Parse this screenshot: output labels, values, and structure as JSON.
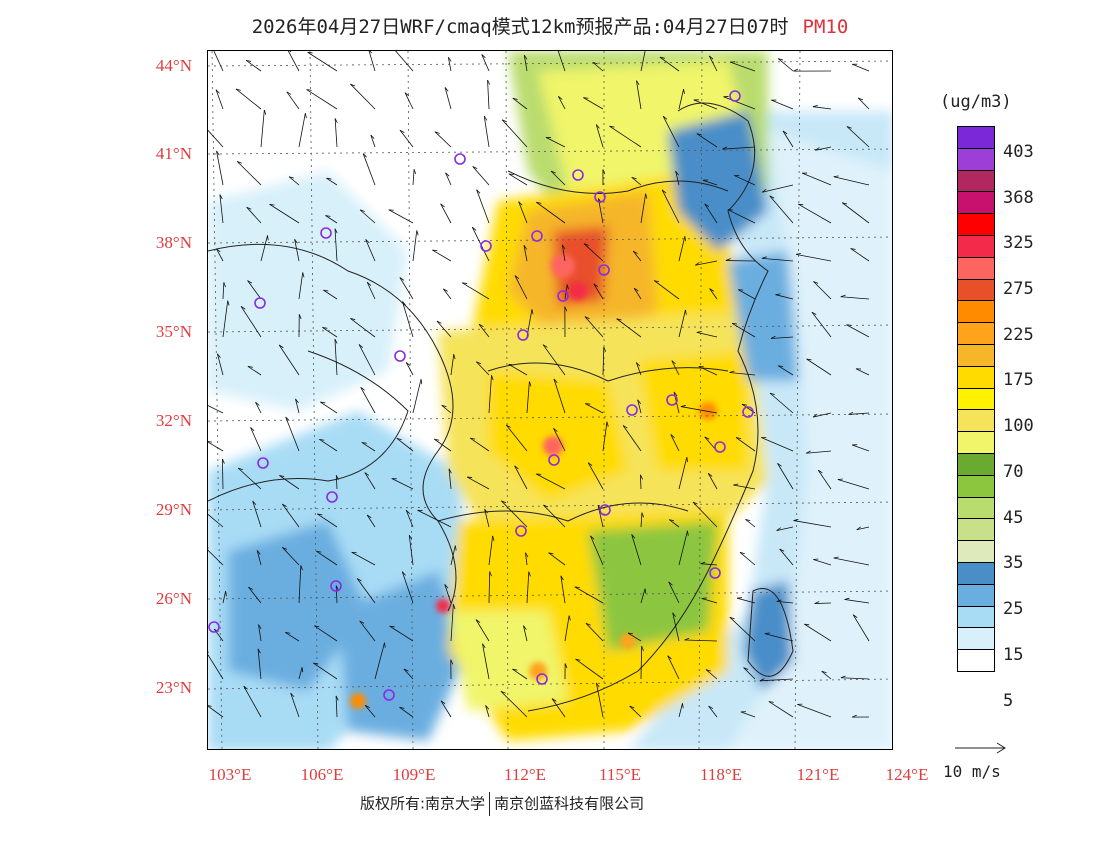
{
  "title": {
    "text": "2026年04月27日WRF/cmaq模式12km预报产品:04月27日07时",
    "pollutant": "PM10"
  },
  "axes": {
    "latitude_labels": [
      "44°N",
      "41°N",
      "38°N",
      "35°N",
      "32°N",
      "29°N",
      "26°N",
      "23°N"
    ],
    "longitude_labels": [
      "103°E",
      "106°E",
      "109°E",
      "112°E",
      "115°E",
      "118°E",
      "121°E",
      "124°E"
    ]
  },
  "legend": {
    "unit": "(ug/m3)",
    "labels": [
      "403",
      "368",
      "325",
      "275",
      "225",
      "175",
      "100",
      "70",
      "45",
      "35",
      "25",
      "15",
      "5"
    ],
    "colors": [
      "#7a28d8",
      "#9b3fd6",
      "#b0285f",
      "#c8106e",
      "#ff0000",
      "#f42a4a",
      "#ff6560",
      "#e8502a",
      "#ff8c00",
      "#ffa31a",
      "#f5b62a",
      "#ffdb00",
      "#fff200",
      "#f5e35a",
      "#f0f56a",
      "#6aaa30",
      "#8cc63f",
      "#b9dc6e",
      "#c8e08a",
      "#dfeabc",
      "#4a8ec8",
      "#6aaee0",
      "#a8dcf5",
      "#d8f0fa",
      "#ffffff"
    ]
  },
  "wind_scale": {
    "label": "10 m/s"
  },
  "footer": {
    "copyright_left": "版权所有:南京大学",
    "copyright_right": "南京创蓝科技有限公司"
  },
  "colors": {
    "label_red": "#e03c3c",
    "station_circle": "#8a2be2"
  }
}
